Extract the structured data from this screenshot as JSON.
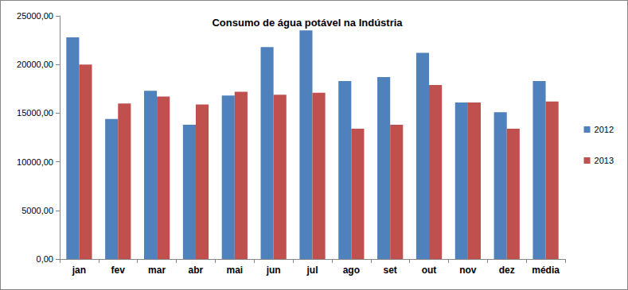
{
  "chart_data": {
    "type": "bar",
    "title": "Consumo de água potável na Indústria",
    "categories": [
      "jan",
      "fev",
      "mar",
      "abr",
      "mai",
      "jun",
      "jul",
      "ago",
      "set",
      "out",
      "nov",
      "dez",
      "média"
    ],
    "series": [
      {
        "name": "2012",
        "color": "#4f81bd",
        "values": [
          22800,
          14400,
          17300,
          13800,
          16800,
          21800,
          23500,
          18300,
          18700,
          21200,
          16100,
          15100,
          18300
        ]
      },
      {
        "name": "2013",
        "color": "#c0504d",
        "values": [
          20000,
          16000,
          16700,
          15900,
          17200,
          16900,
          17100,
          13400,
          13800,
          17900,
          16100,
          13400,
          16200
        ]
      }
    ],
    "ylim": [
      0,
      25000
    ],
    "yticks": [
      {
        "value": 0,
        "label": "0,00"
      },
      {
        "value": 5000,
        "label": "5000,00"
      },
      {
        "value": 10000,
        "label": "10000,00"
      },
      {
        "value": 15000,
        "label": "15000,00"
      },
      {
        "value": 20000,
        "label": "20000,00"
      },
      {
        "value": 25000,
        "label": "25000,00"
      }
    ],
    "grid": false,
    "legend": "right"
  }
}
